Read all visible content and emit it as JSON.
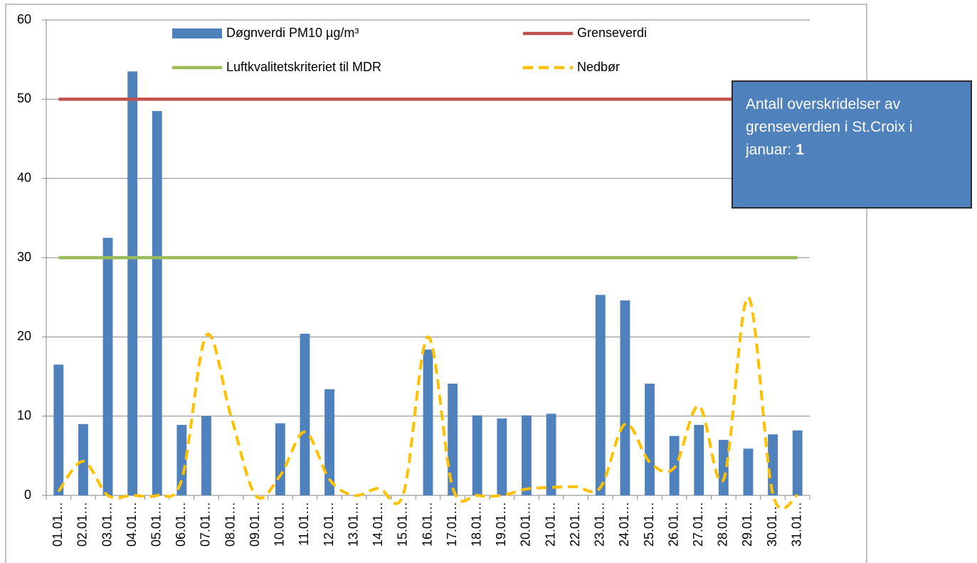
{
  "chart_data": {
    "type": "bar",
    "categories": [
      "01.01…",
      "02.01…",
      "03.01…",
      "04.01…",
      "05.01…",
      "06.01…",
      "07.01…",
      "08.01…",
      "09.01…",
      "10.01…",
      "11.01…",
      "12.01…",
      "13.01…",
      "14.01…",
      "15.01…",
      "16.01…",
      "17.01…",
      "18.01…",
      "19.01…",
      "20.01…",
      "21.01…",
      "22.01…",
      "23.01…",
      "24.01…",
      "25.01…",
      "26.01…",
      "27.01…",
      "28.01…",
      "29.01…",
      "30.01…",
      "31.01…"
    ],
    "series": [
      {
        "name": "Døgnverdi PM10 µg/m³",
        "type": "bar",
        "color": "#4f81bd",
        "values": [
          16.5,
          9,
          32.5,
          53.5,
          48.5,
          8.9,
          10,
          null,
          null,
          9.1,
          20.4,
          13.4,
          null,
          null,
          null,
          18.4,
          14.1,
          10.1,
          9.7,
          10.1,
          10.3,
          null,
          25.3,
          24.6,
          14.1,
          7.5,
          8.9,
          7,
          5.9,
          7.7,
          8.2
        ]
      },
      {
        "name": "Grenseverdi",
        "type": "line",
        "color": "#c0504d",
        "values": [
          50,
          50,
          50,
          50,
          50,
          50,
          50,
          50,
          50,
          50,
          50,
          50,
          50,
          50,
          50,
          50,
          50,
          50,
          50,
          50,
          50,
          50,
          50,
          50,
          50,
          50,
          50,
          50,
          50,
          50,
          50
        ]
      },
      {
        "name": "Luftkvalitetskriteriet til MDR",
        "type": "line",
        "color": "#9bbb59",
        "values": [
          30,
          30,
          30,
          30,
          30,
          30,
          30,
          30,
          30,
          30,
          30,
          30,
          30,
          30,
          30,
          30,
          30,
          30,
          30,
          30,
          30,
          30,
          30,
          30,
          30,
          30,
          30,
          30,
          30,
          30,
          30
        ]
      },
      {
        "name": "Nedbør",
        "type": "line",
        "dashed": true,
        "color": "#ffc000",
        "values": [
          0.5,
          4.3,
          0,
          0,
          0,
          2,
          20.2,
          10,
          0,
          2.5,
          8,
          2,
          0,
          0.9,
          0.2,
          20,
          1,
          0,
          0,
          0.8,
          1,
          1.1,
          1,
          9,
          4.2,
          3.5,
          11.3,
          2,
          25,
          0.2,
          0
        ]
      }
    ],
    "ylim": [
      0,
      60
    ],
    "yticks": [
      0,
      10,
      20,
      30,
      40,
      50,
      60
    ],
    "grid": true,
    "legend": "top",
    "annotation": {
      "text": "Antall overskridelser av grenseverdien i St.Croix i januar:",
      "bold": "1"
    }
  }
}
